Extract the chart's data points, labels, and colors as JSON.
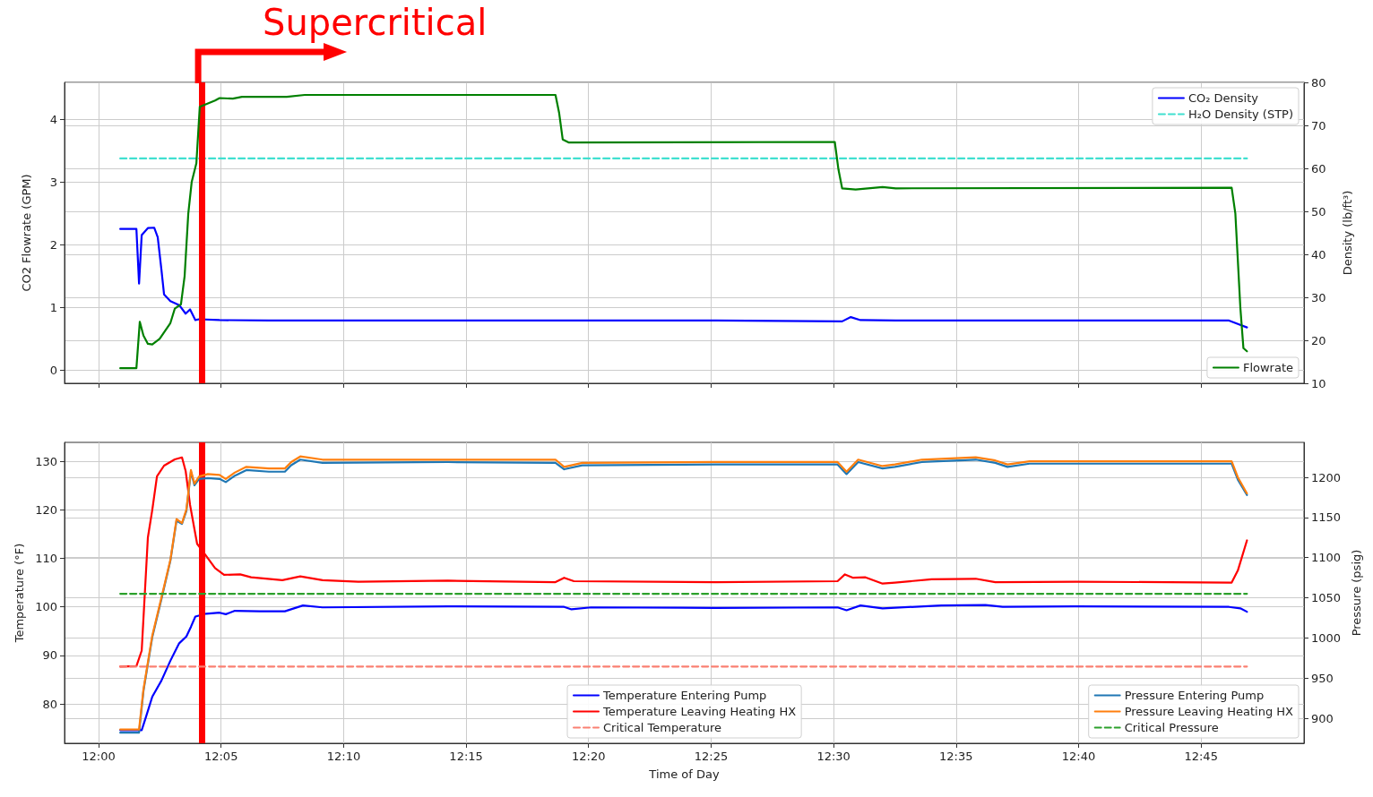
{
  "chart_data": [
    {
      "type": "line",
      "ylabel": "CO2 Flowrate (GPM)",
      "y2label": "Density (lb/ft³)",
      "xlim": [
        11.9768,
        12.82
      ],
      "xticks": [
        {
          "value": 12.0,
          "label": null
        },
        {
          "value": 12.0833,
          "label": null
        },
        {
          "value": 12.1667,
          "label": null
        },
        {
          "value": 12.25,
          "label": null
        },
        {
          "value": 12.3333,
          "label": null
        },
        {
          "value": 12.4167,
          "label": null
        },
        {
          "value": 12.5,
          "label": null
        },
        {
          "value": 12.5833,
          "label": null
        },
        {
          "value": 12.6667,
          "label": null
        },
        {
          "value": 12.75,
          "label": null
        }
      ],
      "ylim": [
        -0.21,
        4.59
      ],
      "yticks": [
        0,
        1,
        2,
        3,
        4
      ],
      "y2lim": [
        10,
        80
      ],
      "y2ticks": [
        10,
        20,
        30,
        40,
        50,
        60,
        70,
        80
      ],
      "tick_labels": "y",
      "grid": true,
      "legend": "top right",
      "ref_lines": [
        {
          "axis": "x",
          "value": 12.0677,
          "label": "Supercritical",
          "color": "#ff0000"
        }
      ],
      "series": [
        {
          "name": "CO₂ Density",
          "color": "#0000ff",
          "axis": "y2",
          "x": [
            12.0147,
            12.0257,
            12.0275,
            12.0293,
            12.0335,
            12.0378,
            12.0402,
            12.0427,
            12.0445,
            12.0488,
            12.0548,
            12.0592,
            12.0622,
            12.0658,
            12.0683,
            12.0823,
            12.1158,
            12.42,
            12.5058,
            12.5117,
            12.5183,
            12.5423,
            12.769,
            12.775,
            12.7812
          ],
          "values": [
            45.9,
            45.9,
            33.2,
            44.5,
            46.1,
            46.2,
            44.0,
            36.5,
            30.7,
            29.1,
            28.2,
            26.2,
            27.2,
            24.7,
            24.9,
            24.7,
            24.6,
            24.6,
            24.4,
            25.4,
            24.7,
            24.6,
            24.6,
            23.8,
            23.0
          ]
        },
        {
          "name": "H₂O Density (STP)",
          "color": "#40e0d0",
          "axis": "y2",
          "line_style": "dashed",
          "x": [
            12.0147,
            12.7812
          ],
          "values": [
            62.3,
            62.3
          ]
        },
        {
          "name": "Flowrate",
          "color": "#008000",
          "axis": "y",
          "x": [
            12.0147,
            12.0257,
            12.028,
            12.0305,
            12.0335,
            12.0365,
            12.0415,
            12.0488,
            12.0518,
            12.056,
            12.0585,
            12.061,
            12.0633,
            12.0665,
            12.0688,
            12.0792,
            12.0823,
            12.0913,
            12.0975,
            12.128,
            12.1402,
            12.3108,
            12.3133,
            12.3157,
            12.32,
            12.5008,
            12.5033,
            12.5058,
            12.515,
            12.5333,
            12.5423,
            12.7708,
            12.7733,
            12.7767,
            12.7788,
            12.7812
          ],
          "values": [
            0.03,
            0.03,
            0.77,
            0.55,
            0.42,
            0.41,
            0.5,
            0.75,
            0.98,
            1.05,
            1.5,
            2.5,
            3.0,
            3.3,
            4.2,
            4.3,
            4.34,
            4.33,
            4.36,
            4.36,
            4.39,
            4.39,
            4.1,
            3.68,
            3.63,
            3.64,
            3.2,
            2.9,
            2.88,
            2.92,
            2.9,
            2.91,
            2.5,
            1.0,
            0.35,
            0.3
          ]
        }
      ]
    },
    {
      "type": "line",
      "xlabel": "Time of Day",
      "ylabel": "Temperature (°F)",
      "y2label": "Pressure (psig)",
      "xlim": [
        11.9768,
        12.82
      ],
      "xticks": [
        {
          "value": 12.0,
          "label": "12:00"
        },
        {
          "value": 12.0833,
          "label": "12:05"
        },
        {
          "value": 12.1667,
          "label": "12:10"
        },
        {
          "value": 12.25,
          "label": "12:15"
        },
        {
          "value": 12.3333,
          "label": "12:20"
        },
        {
          "value": 12.4167,
          "label": "12:25"
        },
        {
          "value": 12.5,
          "label": "12:30"
        },
        {
          "value": 12.5833,
          "label": "12:35"
        },
        {
          "value": 12.6667,
          "label": "12:40"
        },
        {
          "value": 12.75,
          "label": "12:45"
        }
      ],
      "ylim": [
        71.9,
        133.9
      ],
      "yticks": [
        80,
        90,
        100,
        110,
        120,
        130
      ],
      "y2lim": [
        868.8,
        1243.5
      ],
      "y2ticks": [
        900,
        950,
        1000,
        1050,
        1100,
        1150,
        1200
      ],
      "grid": true,
      "legend": "bottom",
      "ref_lines": [
        {
          "axis": "x",
          "value": 12.0677,
          "color": "#ff0000"
        }
      ],
      "series": [
        {
          "name": "Temperature Entering Pump",
          "color": "#0000ff",
          "axis": "y",
          "x": [
            12.0147,
            12.0293,
            12.0323,
            12.0365,
            12.0427,
            12.0488,
            12.0548,
            12.0597,
            12.0628,
            12.0658,
            12.0732,
            12.0823,
            12.0865,
            12.0927,
            12.1097,
            12.1267,
            12.139,
            12.1523,
            12.2377,
            12.3167,
            12.3217,
            12.335,
            12.42,
            12.5027,
            12.5088,
            12.5183,
            12.5333,
            12.5733,
            12.6033,
            12.615,
            12.6642,
            12.769,
            12.7767,
            12.7812
          ],
          "values": [
            74.6,
            74.6,
            77.4,
            81.5,
            84.8,
            88.9,
            92.5,
            93.9,
            95.9,
            98.0,
            98.6,
            98.8,
            98.5,
            99.2,
            99.1,
            99.1,
            100.3,
            99.9,
            100.1,
            100.0,
            99.5,
            99.9,
            99.8,
            99.9,
            99.3,
            100.3,
            99.7,
            100.3,
            100.4,
            100.0,
            100.1,
            100.0,
            99.7,
            99.0
          ]
        },
        {
          "name": "Temperature Leaving Heating HX",
          "color": "#ff0000",
          "axis": "y",
          "x": [
            12.0147,
            12.0257,
            12.0293,
            12.0335,
            12.0365,
            12.0397,
            12.0445,
            12.0518,
            12.0567,
            12.0592,
            12.0622,
            12.0652,
            12.067,
            12.0732,
            12.0792,
            12.0853,
            12.0963,
            12.1037,
            12.125,
            12.1372,
            12.1523,
            12.1767,
            12.2377,
            12.3108,
            12.3167,
            12.3233,
            12.42,
            12.5027,
            12.5077,
            12.5133,
            12.5217,
            12.5333,
            12.5417,
            12.5667,
            12.5967,
            12.61,
            12.665,
            12.7708,
            12.775,
            12.7812
          ],
          "values": [
            87.7,
            87.8,
            91.0,
            114.3,
            120.0,
            126.9,
            129.1,
            130.4,
            130.8,
            128.0,
            121.0,
            116.0,
            113.0,
            110.5,
            108.0,
            106.6,
            106.7,
            106.1,
            105.5,
            106.3,
            105.5,
            105.2,
            105.4,
            105.1,
            106.0,
            105.3,
            105.1,
            105.3,
            106.7,
            106.0,
            106.1,
            104.8,
            105.0,
            105.7,
            105.8,
            105.1,
            105.2,
            105.0,
            107.5,
            113.7
          ]
        },
        {
          "name": "Critical Temperature",
          "color": "#fa8072",
          "axis": "y",
          "line_style": "dashed",
          "x": [
            12.0147,
            12.7812
          ],
          "values": [
            87.7,
            87.7
          ]
        },
        {
          "name": "Pressure Entering Pump",
          "color": "#1f77b4",
          "axis": "y2",
          "x": [
            12.0147,
            12.0275,
            12.0305,
            12.0365,
            12.0427,
            12.0488,
            12.053,
            12.0567,
            12.0597,
            12.0628,
            12.0652,
            12.0683,
            12.0743,
            12.0823,
            12.0865,
            12.0927,
            12.1005,
            12.1158,
            12.1267,
            12.131,
            12.1372,
            12.1523,
            12.2377,
            12.3108,
            12.3167,
            12.329,
            12.42,
            12.5027,
            12.5088,
            12.5167,
            12.5333,
            12.5417,
            12.56,
            12.5967,
            12.61,
            12.6183,
            12.6333,
            12.7708,
            12.775,
            12.7812
          ],
          "values": [
            882,
            882,
            934,
            1001,
            1048,
            1096,
            1146,
            1142,
            1158,
            1207,
            1190,
            1198,
            1199,
            1198,
            1194,
            1202,
            1209,
            1207,
            1207,
            1215,
            1222,
            1218,
            1219,
            1218,
            1210,
            1215,
            1216,
            1216,
            1204,
            1219,
            1211,
            1213,
            1219,
            1222,
            1218,
            1213,
            1217,
            1217,
            1197,
            1178
          ]
        },
        {
          "name": "Pressure Leaving Heating HX",
          "color": "#ff7f0e",
          "axis": "y2",
          "x": [
            12.0147,
            12.0275,
            12.0305,
            12.0365,
            12.0427,
            12.0488,
            12.053,
            12.0567,
            12.0597,
            12.0628,
            12.0652,
            12.0683,
            12.0743,
            12.0823,
            12.0865,
            12.0927,
            12.1005,
            12.1158,
            12.1267,
            12.131,
            12.1372,
            12.1523,
            12.2377,
            12.3108,
            12.3167,
            12.329,
            12.42,
            12.5027,
            12.5088,
            12.5167,
            12.5333,
            12.5417,
            12.56,
            12.5967,
            12.61,
            12.6183,
            12.6333,
            12.7708,
            12.775,
            12.7812
          ],
          "values": [
            886,
            886,
            936,
            1003,
            1050,
            1097,
            1148,
            1143,
            1160,
            1209,
            1192,
            1201,
            1204,
            1203,
            1198,
            1206,
            1213,
            1211,
            1211,
            1219,
            1226,
            1222,
            1222,
            1222,
            1213,
            1218,
            1219,
            1219,
            1207,
            1222,
            1214,
            1216,
            1222,
            1225,
            1221,
            1216,
            1220,
            1220,
            1200,
            1180
          ]
        },
        {
          "name": "Critical Pressure",
          "color": "#2ca02c",
          "axis": "y2",
          "line_style": "dashed",
          "x": [
            12.0147,
            12.7812
          ],
          "values": [
            1055,
            1055
          ]
        }
      ]
    }
  ]
}
